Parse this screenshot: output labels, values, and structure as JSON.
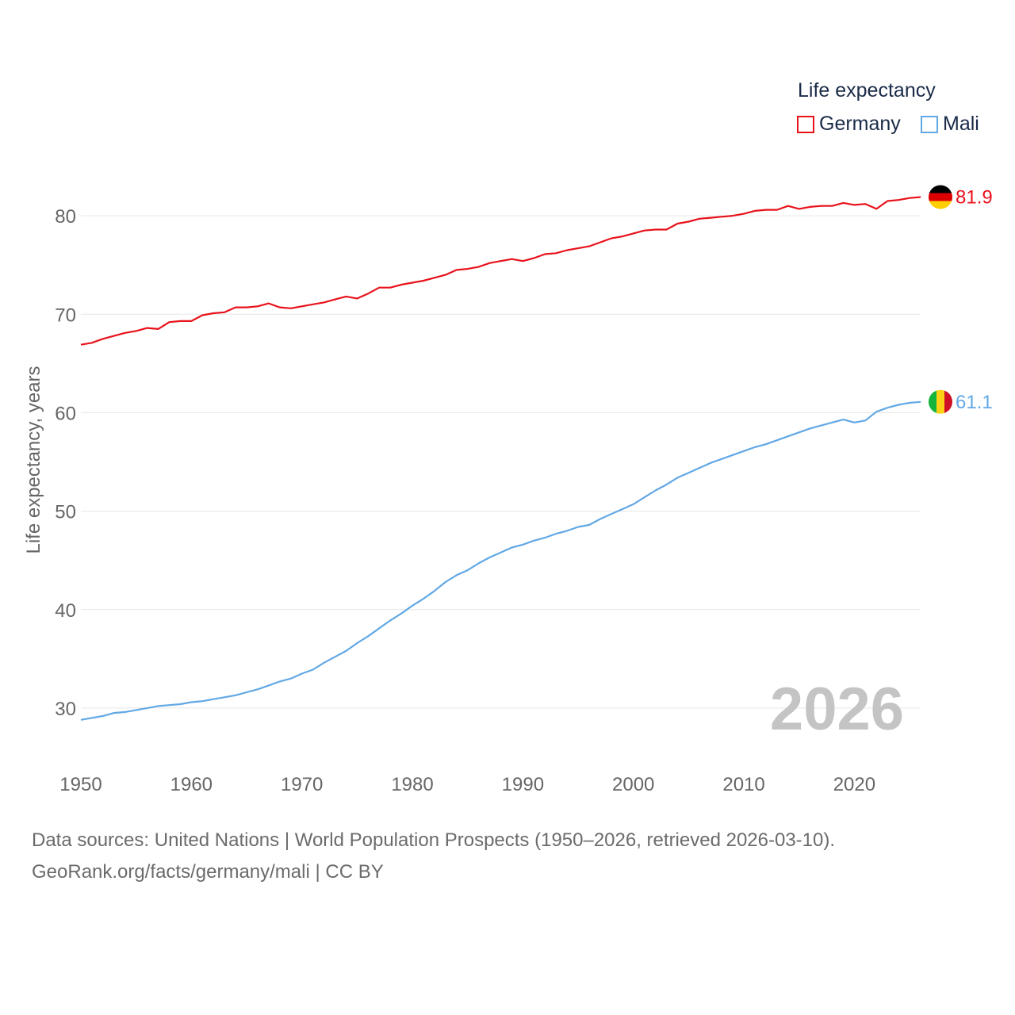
{
  "legend": {
    "title": "Life expectancy",
    "items": [
      {
        "name": "Germany",
        "color": "#e8121b"
      },
      {
        "name": "Mali",
        "color": "#62a8e5"
      }
    ]
  },
  "year_watermark": "2026",
  "source": {
    "line1": "Data sources: United Nations | World Population Prospects (1950–2026, retrieved 2026-03-10).",
    "line2": "GeoRank.org/facts/germany/mali | CC BY"
  },
  "chart_data": {
    "type": "line",
    "title": "Life expectancy",
    "xlabel": "",
    "ylabel": "Life expectancy, years",
    "xlim": [
      1950,
      2026
    ],
    "ylim": [
      25,
      85
    ],
    "x_ticks": [
      1950,
      1960,
      1970,
      1980,
      1990,
      2000,
      2010,
      2020
    ],
    "y_ticks": [
      30,
      40,
      50,
      60,
      70,
      80
    ],
    "grid": true,
    "legend_position": "top-right",
    "series": [
      {
        "name": "Germany",
        "color": "#e8121b",
        "end_label": "81.9",
        "flag": "germany",
        "points": [
          [
            1950,
            66.9
          ],
          [
            1951,
            67.1
          ],
          [
            1952,
            67.5
          ],
          [
            1953,
            67.8
          ],
          [
            1954,
            68.1
          ],
          [
            1955,
            68.3
          ],
          [
            1956,
            68.6
          ],
          [
            1957,
            68.5
          ],
          [
            1958,
            69.2
          ],
          [
            1959,
            69.3
          ],
          [
            1960,
            69.3
          ],
          [
            1961,
            69.9
          ],
          [
            1962,
            70.1
          ],
          [
            1963,
            70.2
          ],
          [
            1964,
            70.7
          ],
          [
            1965,
            70.7
          ],
          [
            1966,
            70.8
          ],
          [
            1967,
            71.1
          ],
          [
            1968,
            70.7
          ],
          [
            1969,
            70.6
          ],
          [
            1970,
            70.8
          ],
          [
            1971,
            71.0
          ],
          [
            1972,
            71.2
          ],
          [
            1973,
            71.5
          ],
          [
            1974,
            71.8
          ],
          [
            1975,
            71.6
          ],
          [
            1976,
            72.1
          ],
          [
            1977,
            72.7
          ],
          [
            1978,
            72.7
          ],
          [
            1979,
            73.0
          ],
          [
            1980,
            73.2
          ],
          [
            1981,
            73.4
          ],
          [
            1982,
            73.7
          ],
          [
            1983,
            74.0
          ],
          [
            1984,
            74.5
          ],
          [
            1985,
            74.6
          ],
          [
            1986,
            74.8
          ],
          [
            1987,
            75.2
          ],
          [
            1988,
            75.4
          ],
          [
            1989,
            75.6
          ],
          [
            1990,
            75.4
          ],
          [
            1991,
            75.7
          ],
          [
            1992,
            76.1
          ],
          [
            1993,
            76.2
          ],
          [
            1994,
            76.5
          ],
          [
            1995,
            76.7
          ],
          [
            1996,
            76.9
          ],
          [
            1997,
            77.3
          ],
          [
            1998,
            77.7
          ],
          [
            1999,
            77.9
          ],
          [
            2000,
            78.2
          ],
          [
            2001,
            78.5
          ],
          [
            2002,
            78.6
          ],
          [
            2003,
            78.6
          ],
          [
            2004,
            79.2
          ],
          [
            2005,
            79.4
          ],
          [
            2006,
            79.7
          ],
          [
            2007,
            79.8
          ],
          [
            2008,
            79.9
          ],
          [
            2009,
            80.0
          ],
          [
            2010,
            80.2
          ],
          [
            2011,
            80.5
          ],
          [
            2012,
            80.6
          ],
          [
            2013,
            80.6
          ],
          [
            2014,
            81.0
          ],
          [
            2015,
            80.7
          ],
          [
            2016,
            80.9
          ],
          [
            2017,
            81.0
          ],
          [
            2018,
            81.0
          ],
          [
            2019,
            81.3
          ],
          [
            2020,
            81.1
          ],
          [
            2021,
            81.2
          ],
          [
            2022,
            80.7
          ],
          [
            2023,
            81.5
          ],
          [
            2024,
            81.6
          ],
          [
            2025,
            81.8
          ],
          [
            2026,
            81.9
          ]
        ]
      },
      {
        "name": "Mali",
        "color": "#62a8e5",
        "end_label": "61.1",
        "flag": "mali",
        "points": [
          [
            1950,
            28.8
          ],
          [
            1951,
            29.0
          ],
          [
            1952,
            29.2
          ],
          [
            1953,
            29.5
          ],
          [
            1954,
            29.6
          ],
          [
            1955,
            29.8
          ],
          [
            1956,
            30.0
          ],
          [
            1957,
            30.2
          ],
          [
            1958,
            30.3
          ],
          [
            1959,
            30.4
          ],
          [
            1960,
            30.6
          ],
          [
            1961,
            30.7
          ],
          [
            1962,
            30.9
          ],
          [
            1963,
            31.1
          ],
          [
            1964,
            31.3
          ],
          [
            1965,
            31.6
          ],
          [
            1966,
            31.9
          ],
          [
            1967,
            32.3
          ],
          [
            1968,
            32.7
          ],
          [
            1969,
            33.0
          ],
          [
            1970,
            33.5
          ],
          [
            1971,
            33.9
          ],
          [
            1972,
            34.6
          ],
          [
            1973,
            35.2
          ],
          [
            1974,
            35.8
          ],
          [
            1975,
            36.6
          ],
          [
            1976,
            37.3
          ],
          [
            1977,
            38.1
          ],
          [
            1978,
            38.9
          ],
          [
            1979,
            39.6
          ],
          [
            1980,
            40.4
          ],
          [
            1981,
            41.1
          ],
          [
            1982,
            41.9
          ],
          [
            1983,
            42.8
          ],
          [
            1984,
            43.5
          ],
          [
            1985,
            44.0
          ],
          [
            1986,
            44.7
          ],
          [
            1987,
            45.3
          ],
          [
            1988,
            45.8
          ],
          [
            1989,
            46.3
          ],
          [
            1990,
            46.6
          ],
          [
            1991,
            47.0
          ],
          [
            1992,
            47.3
          ],
          [
            1993,
            47.7
          ],
          [
            1994,
            48.0
          ],
          [
            1995,
            48.4
          ],
          [
            1996,
            48.6
          ],
          [
            1997,
            49.2
          ],
          [
            1998,
            49.7
          ],
          [
            1999,
            50.2
          ],
          [
            2000,
            50.7
          ],
          [
            2001,
            51.4
          ],
          [
            2002,
            52.1
          ],
          [
            2003,
            52.7
          ],
          [
            2004,
            53.4
          ],
          [
            2005,
            53.9
          ],
          [
            2006,
            54.4
          ],
          [
            2007,
            54.9
          ],
          [
            2008,
            55.3
          ],
          [
            2009,
            55.7
          ],
          [
            2010,
            56.1
          ],
          [
            2011,
            56.5
          ],
          [
            2012,
            56.8
          ],
          [
            2013,
            57.2
          ],
          [
            2014,
            57.6
          ],
          [
            2015,
            58.0
          ],
          [
            2016,
            58.4
          ],
          [
            2017,
            58.7
          ],
          [
            2018,
            59.0
          ],
          [
            2019,
            59.3
          ],
          [
            2020,
            59.0
          ],
          [
            2021,
            59.2
          ],
          [
            2022,
            60.1
          ],
          [
            2023,
            60.5
          ],
          [
            2024,
            60.8
          ],
          [
            2025,
            61.0
          ],
          [
            2026,
            61.1
          ]
        ]
      }
    ]
  }
}
